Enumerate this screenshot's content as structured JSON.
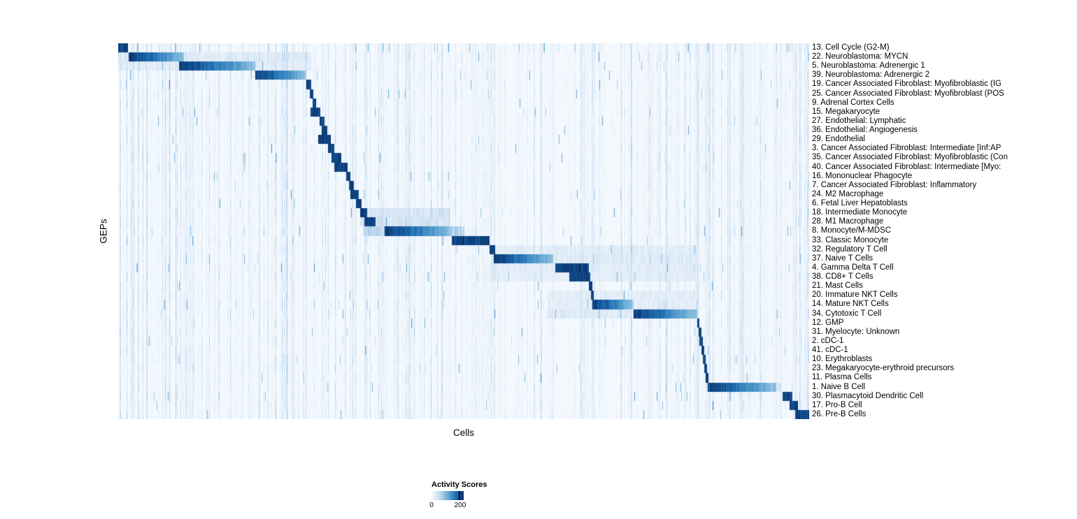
{
  "figure": {
    "xlabel": "Cells",
    "ylabel": "GEPs"
  },
  "legend": {
    "title": "Activity Scores",
    "ticks": [
      {
        "label": "0",
        "pos": 0.0
      },
      {
        "label": "200",
        "pos": 0.89
      }
    ]
  },
  "chart_data": {
    "type": "heatmap",
    "title": "",
    "xlabel": "Cells",
    "ylabel": "GEPs",
    "colorbar": {
      "title": "Activity Scores",
      "min": 0,
      "max": 200,
      "colormap": "Blues (white to dark blue)"
    },
    "colors": {
      "low": "#f7fbff",
      "mid": "#6baed6",
      "high": "#08306b"
    },
    "n_rows": 41,
    "structure_note": "Each GEP row shows a dark-blue block of high activity over a contiguous fraction of cells, forming a diagonal from top-left to bottom-right; block ranges are fractions of the x-axis (0-1), estimated from the plot. Sparse speckle noise covers the rest of the map.",
    "rows": [
      {
        "label": "13. Cell Cycle (G2-M)",
        "block": [
          0.0,
          0.014
        ],
        "fade": 0,
        "scatter": 1.6,
        "band": null
      },
      {
        "label": "22. Neuroblastoma: MYCN",
        "block": [
          0.015,
          0.095
        ],
        "fade": 1,
        "scatter": 0.5,
        "band": [
          0.0,
          0.28,
          0.18
        ]
      },
      {
        "label": "5. Neuroblastoma: Adrenergic 1",
        "block": [
          0.088,
          0.198
        ],
        "fade": 1,
        "scatter": 0.4,
        "band": [
          0.0,
          0.28,
          0.15
        ]
      },
      {
        "label": "39. Neuroblastoma: Adrenergic 2",
        "block": [
          0.198,
          0.272
        ],
        "fade": 1,
        "scatter": 0.4,
        "band": null
      },
      {
        "label": "19. Cancer Associated Fibroblast: Myofibroblastic (IG",
        "block": [
          0.272,
          0.279
        ],
        "fade": 0,
        "scatter": 0.3,
        "band": null
      },
      {
        "label": "25. Cancer Associated Fibroblast: Myofibroblast (POS",
        "block": [
          0.277,
          0.282
        ],
        "fade": 0,
        "scatter": 0.3,
        "band": null
      },
      {
        "label": "9. Adrenal Cortex Cells",
        "block": [
          0.281,
          0.286
        ],
        "fade": 0,
        "scatter": 0.25,
        "band": null
      },
      {
        "label": "15. Megakaryocyte",
        "block": [
          0.278,
          0.292
        ],
        "fade": 0,
        "scatter": 0.3,
        "band": null
      },
      {
        "label": "27. Endothelial: Lymphatic",
        "block": [
          0.291,
          0.298
        ],
        "fade": 0,
        "scatter": 0.3,
        "band": null
      },
      {
        "label": "36. Endothelial: Angiogenesis",
        "block": [
          0.294,
          0.302
        ],
        "fade": 0,
        "scatter": 0.3,
        "band": null
      },
      {
        "label": "29. Endothelial",
        "block": [
          0.289,
          0.307
        ],
        "fade": 0,
        "scatter": 0.3,
        "band": null
      },
      {
        "label": "3. Cancer Associated Fibroblast: Intermediate [Inf:AP",
        "block": [
          0.303,
          0.312
        ],
        "fade": 0,
        "scatter": 0.3,
        "band": null
      },
      {
        "label": "35. Cancer Associated Fibroblast: Myofibroblastic (Con",
        "block": [
          0.308,
          0.322
        ],
        "fade": 0,
        "scatter": 0.3,
        "band": null
      },
      {
        "label": "40. Cancer Associated Fibroblast: Intermediate [Myo:",
        "block": [
          0.312,
          0.331
        ],
        "fade": 0,
        "scatter": 0.3,
        "band": null
      },
      {
        "label": "16. Mononuclear Phagocyte",
        "block": [
          0.329,
          0.336
        ],
        "fade": 0,
        "scatter": 0.35,
        "band": null
      },
      {
        "label": "7. Cancer Associated Fibroblast: Inflammatory",
        "block": [
          0.334,
          0.341
        ],
        "fade": 0,
        "scatter": 0.3,
        "band": null
      },
      {
        "label": "24. M2 Macrophage",
        "block": [
          0.336,
          0.348
        ],
        "fade": 0,
        "scatter": 0.35,
        "band": null
      },
      {
        "label": "6. Fetal Liver Hepatoblasts",
        "block": [
          0.344,
          0.352
        ],
        "fade": 0,
        "scatter": 0.3,
        "band": null
      },
      {
        "label": "18. Intermediate Monocyte",
        "block": [
          0.35,
          0.36
        ],
        "fade": 0,
        "scatter": 0.35,
        "band": [
          0.35,
          0.48,
          0.25
        ]
      },
      {
        "label": "28. M1 Macrophage",
        "block": [
          0.356,
          0.372
        ],
        "fade": 0,
        "scatter": 0.35,
        "band": [
          0.35,
          0.48,
          0.25
        ]
      },
      {
        "label": "8. Monocyte/M-MDSC",
        "block": [
          0.385,
          0.482
        ],
        "fade": 1,
        "scatter": 0.5,
        "band": [
          0.355,
          0.5,
          0.4
        ]
      },
      {
        "label": "33. Classic Monocyte",
        "block": [
          0.482,
          0.537
        ],
        "fade": 0,
        "scatter": 0.45,
        "band": null
      },
      {
        "label": "32. Regulatory T Cell",
        "block": [
          0.537,
          0.545
        ],
        "fade": 0,
        "scatter": 0.45,
        "band": [
          0.54,
          0.84,
          0.15
        ]
      },
      {
        "label": "37. Naive T Cells",
        "block": [
          0.543,
          0.629
        ],
        "fade": 1,
        "scatter": 0.5,
        "band": [
          0.54,
          0.84,
          0.18
        ]
      },
      {
        "label": "4. Gamma Delta T Cell",
        "block": [
          0.632,
          0.681
        ],
        "fade": 0,
        "scatter": 0.45,
        "band": [
          0.54,
          0.84,
          0.15
        ]
      },
      {
        "label": "38. CD8+ T Cells",
        "block": [
          0.652,
          0.683
        ],
        "fade": 0,
        "scatter": 0.45,
        "band": [
          0.54,
          0.84,
          0.15
        ]
      },
      {
        "label": "21. Mast Cells",
        "block": [
          0.681,
          0.686
        ],
        "fade": 0,
        "scatter": 0.3,
        "band": null
      },
      {
        "label": "20. Immature NKT Cells",
        "block": [
          0.684,
          0.688
        ],
        "fade": 0,
        "scatter": 0.4,
        "band": [
          0.62,
          0.84,
          0.15
        ]
      },
      {
        "label": "14. Mature NKT Cells",
        "block": [
          0.686,
          0.745
        ],
        "fade": 1,
        "scatter": 0.45,
        "band": [
          0.62,
          0.84,
          0.15
        ]
      },
      {
        "label": "34. Cytotoxic T Cell",
        "block": [
          0.745,
          0.838
        ],
        "fade": 1,
        "scatter": 0.5,
        "band": [
          0.62,
          0.84,
          0.18
        ]
      },
      {
        "label": "12. GMP",
        "block": [
          0.838,
          0.841
        ],
        "fade": 0,
        "scatter": 0.3,
        "band": null
      },
      {
        "label": "31. Myelocyte: Unknown",
        "block": [
          0.84,
          0.844
        ],
        "fade": 0,
        "scatter": 0.35,
        "band": null
      },
      {
        "label": "2. cDC-1",
        "block": [
          0.841,
          0.846
        ],
        "fade": 0,
        "scatter": 0.35,
        "band": null
      },
      {
        "label": "41. cDC-1",
        "block": [
          0.844,
          0.848
        ],
        "fade": 0,
        "scatter": 0.3,
        "band": null
      },
      {
        "label": "10. Erythroblasts",
        "block": [
          0.846,
          0.85
        ],
        "fade": 0,
        "scatter": 0.35,
        "band": null
      },
      {
        "label": "23. Megakaryocyte-erythroid precursors",
        "block": [
          0.848,
          0.852
        ],
        "fade": 0,
        "scatter": 0.4,
        "band": null
      },
      {
        "label": "11. Plasma Cells",
        "block": [
          0.85,
          0.854
        ],
        "fade": 0,
        "scatter": 0.3,
        "band": null
      },
      {
        "label": "1. Naive B Cell",
        "block": [
          0.853,
          0.952
        ],
        "fade": 1,
        "scatter": 0.45,
        "band": [
          0.85,
          0.96,
          0.2
        ]
      },
      {
        "label": "30. Plasmacytoid Dendritic Cell",
        "block": [
          0.961,
          0.975
        ],
        "fade": 0,
        "scatter": 0.35,
        "band": null
      },
      {
        "label": "17. Pro-B Cell",
        "block": [
          0.971,
          0.983
        ],
        "fade": 0,
        "scatter": 0.3,
        "band": null
      },
      {
        "label": "26. Pre-B Cells",
        "block": [
          0.979,
          1.0
        ],
        "fade": 0,
        "scatter": 0.4,
        "band": null
      }
    ]
  }
}
